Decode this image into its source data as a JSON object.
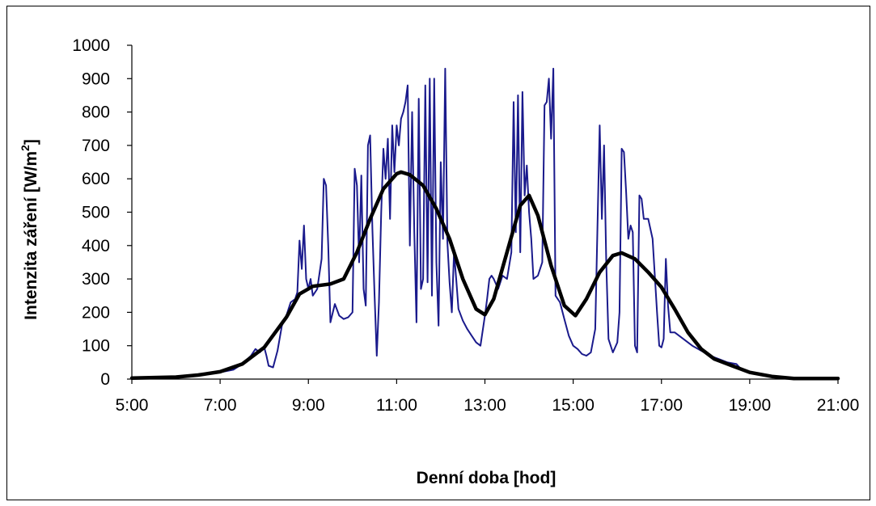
{
  "chart_data": {
    "type": "line",
    "title": "",
    "xlabel": "Denní doba [hod]",
    "ylabel_main": "Intenzita záření [W/m",
    "ylabel_sup": "2",
    "ylabel_close": "]",
    "xlim": [
      5,
      21
    ],
    "ylim": [
      0,
      1000
    ],
    "x_ticks": [
      5,
      7,
      9,
      11,
      13,
      15,
      17,
      19,
      21
    ],
    "x_tick_labels": [
      "5:00",
      "7:00",
      "9:00",
      "11:00",
      "13:00",
      "15:00",
      "17:00",
      "19:00",
      "21:00"
    ],
    "y_ticks": [
      0,
      100,
      200,
      300,
      400,
      500,
      600,
      700,
      800,
      900,
      1000
    ],
    "y_tick_labels": [
      "0",
      "100",
      "200",
      "300",
      "400",
      "500",
      "600",
      "700",
      "800",
      "900",
      "1000"
    ],
    "grid": false,
    "legend": "none",
    "series": [
      {
        "color": "#1a1a8c",
        "points": [
          [
            5.0,
            5
          ],
          [
            6.0,
            5
          ],
          [
            6.5,
            12
          ],
          [
            7.0,
            20
          ],
          [
            7.3,
            28
          ],
          [
            7.5,
            45
          ],
          [
            7.7,
            70
          ],
          [
            7.8,
            90
          ],
          [
            7.9,
            80
          ],
          [
            8.0,
            95
          ],
          [
            8.05,
            70
          ],
          [
            8.1,
            40
          ],
          [
            8.2,
            35
          ],
          [
            8.3,
            85
          ],
          [
            8.4,
            160
          ],
          [
            8.5,
            190
          ],
          [
            8.6,
            230
          ],
          [
            8.7,
            240
          ],
          [
            8.75,
            260
          ],
          [
            8.8,
            415
          ],
          [
            8.85,
            330
          ],
          [
            8.9,
            460
          ],
          [
            8.95,
            300
          ],
          [
            9.0,
            270
          ],
          [
            9.05,
            300
          ],
          [
            9.1,
            250
          ],
          [
            9.2,
            270
          ],
          [
            9.3,
            360
          ],
          [
            9.35,
            600
          ],
          [
            9.4,
            580
          ],
          [
            9.45,
            400
          ],
          [
            9.5,
            170
          ],
          [
            9.6,
            225
          ],
          [
            9.7,
            190
          ],
          [
            9.8,
            180
          ],
          [
            9.9,
            185
          ],
          [
            10.0,
            200
          ],
          [
            10.05,
            630
          ],
          [
            10.1,
            580
          ],
          [
            10.15,
            350
          ],
          [
            10.2,
            610
          ],
          [
            10.25,
            270
          ],
          [
            10.3,
            220
          ],
          [
            10.35,
            700
          ],
          [
            10.4,
            730
          ],
          [
            10.45,
            450
          ],
          [
            10.5,
            250
          ],
          [
            10.55,
            70
          ],
          [
            10.6,
            230
          ],
          [
            10.65,
            500
          ],
          [
            10.7,
            690
          ],
          [
            10.75,
            600
          ],
          [
            10.8,
            720
          ],
          [
            10.85,
            480
          ],
          [
            10.9,
            760
          ],
          [
            10.95,
            620
          ],
          [
            11.0,
            760
          ],
          [
            11.05,
            700
          ],
          [
            11.1,
            780
          ],
          [
            11.15,
            800
          ],
          [
            11.2,
            830
          ],
          [
            11.25,
            880
          ],
          [
            11.3,
            400
          ],
          [
            11.35,
            800
          ],
          [
            11.4,
            440
          ],
          [
            11.45,
            170
          ],
          [
            11.5,
            840
          ],
          [
            11.55,
            270
          ],
          [
            11.6,
            300
          ],
          [
            11.65,
            880
          ],
          [
            11.7,
            290
          ],
          [
            11.75,
            900
          ],
          [
            11.8,
            250
          ],
          [
            11.85,
            900
          ],
          [
            11.9,
            350
          ],
          [
            11.95,
            160
          ],
          [
            12.0,
            650
          ],
          [
            12.05,
            420
          ],
          [
            12.1,
            930
          ],
          [
            12.15,
            410
          ],
          [
            12.2,
            290
          ],
          [
            12.25,
            200
          ],
          [
            12.3,
            380
          ],
          [
            12.35,
            300
          ],
          [
            12.4,
            210
          ],
          [
            12.5,
            175
          ],
          [
            12.6,
            150
          ],
          [
            12.7,
            130
          ],
          [
            12.8,
            110
          ],
          [
            12.9,
            100
          ],
          [
            13.0,
            190
          ],
          [
            13.05,
            240
          ],
          [
            13.1,
            300
          ],
          [
            13.15,
            310
          ],
          [
            13.2,
            300
          ],
          [
            13.3,
            270
          ],
          [
            13.4,
            310
          ],
          [
            13.5,
            300
          ],
          [
            13.6,
            380
          ],
          [
            13.65,
            830
          ],
          [
            13.7,
            440
          ],
          [
            13.75,
            850
          ],
          [
            13.8,
            380
          ],
          [
            13.85,
            860
          ],
          [
            13.9,
            550
          ],
          [
            13.95,
            640
          ],
          [
            14.0,
            500
          ],
          [
            14.05,
            420
          ],
          [
            14.1,
            300
          ],
          [
            14.2,
            310
          ],
          [
            14.3,
            350
          ],
          [
            14.35,
            820
          ],
          [
            14.4,
            830
          ],
          [
            14.45,
            900
          ],
          [
            14.5,
            720
          ],
          [
            14.55,
            930
          ],
          [
            14.6,
            250
          ],
          [
            14.7,
            230
          ],
          [
            14.8,
            180
          ],
          [
            14.9,
            130
          ],
          [
            15.0,
            100
          ],
          [
            15.1,
            90
          ],
          [
            15.2,
            75
          ],
          [
            15.3,
            70
          ],
          [
            15.4,
            80
          ],
          [
            15.5,
            150
          ],
          [
            15.55,
            450
          ],
          [
            15.6,
            760
          ],
          [
            15.65,
            480
          ],
          [
            15.7,
            700
          ],
          [
            15.75,
            350
          ],
          [
            15.8,
            120
          ],
          [
            15.9,
            80
          ],
          [
            16.0,
            110
          ],
          [
            16.05,
            200
          ],
          [
            16.1,
            690
          ],
          [
            16.15,
            680
          ],
          [
            16.2,
            560
          ],
          [
            16.25,
            420
          ],
          [
            16.3,
            460
          ],
          [
            16.35,
            440
          ],
          [
            16.4,
            100
          ],
          [
            16.45,
            80
          ],
          [
            16.5,
            550
          ],
          [
            16.55,
            540
          ],
          [
            16.6,
            480
          ],
          [
            16.7,
            480
          ],
          [
            16.8,
            420
          ],
          [
            16.9,
            200
          ],
          [
            16.95,
            100
          ],
          [
            17.0,
            95
          ],
          [
            17.05,
            120
          ],
          [
            17.1,
            360
          ],
          [
            17.15,
            220
          ],
          [
            17.2,
            140
          ],
          [
            17.3,
            140
          ],
          [
            17.5,
            120
          ],
          [
            17.7,
            100
          ],
          [
            17.9,
            85
          ],
          [
            18.1,
            70
          ],
          [
            18.3,
            60
          ],
          [
            18.5,
            50
          ],
          [
            18.7,
            45
          ],
          [
            18.8,
            30
          ],
          [
            19.0,
            22
          ],
          [
            19.3,
            12
          ],
          [
            19.6,
            5
          ],
          [
            20.0,
            2
          ],
          [
            21.0,
            2
          ]
        ]
      },
      {
        "color": "#000000",
        "points": [
          [
            5.0,
            3
          ],
          [
            6.0,
            6
          ],
          [
            6.5,
            12
          ],
          [
            7.0,
            22
          ],
          [
            7.5,
            45
          ],
          [
            8.0,
            95
          ],
          [
            8.5,
            185
          ],
          [
            8.8,
            255
          ],
          [
            9.1,
            278
          ],
          [
            9.5,
            285
          ],
          [
            9.8,
            300
          ],
          [
            10.1,
            380
          ],
          [
            10.4,
            480
          ],
          [
            10.7,
            570
          ],
          [
            11.0,
            615
          ],
          [
            11.1,
            620
          ],
          [
            11.3,
            612
          ],
          [
            11.6,
            580
          ],
          [
            11.9,
            510
          ],
          [
            12.2,
            420
          ],
          [
            12.5,
            300
          ],
          [
            12.8,
            210
          ],
          [
            13.0,
            193
          ],
          [
            13.2,
            240
          ],
          [
            13.5,
            380
          ],
          [
            13.8,
            520
          ],
          [
            14.0,
            550
          ],
          [
            14.2,
            490
          ],
          [
            14.5,
            340
          ],
          [
            14.8,
            220
          ],
          [
            15.05,
            190
          ],
          [
            15.3,
            240
          ],
          [
            15.6,
            320
          ],
          [
            15.9,
            370
          ],
          [
            16.1,
            378
          ],
          [
            16.4,
            360
          ],
          [
            16.7,
            320
          ],
          [
            17.0,
            275
          ],
          [
            17.3,
            210
          ],
          [
            17.6,
            140
          ],
          [
            17.9,
            90
          ],
          [
            18.2,
            60
          ],
          [
            18.6,
            40
          ],
          [
            19.0,
            20
          ],
          [
            19.5,
            8
          ],
          [
            20.0,
            2
          ],
          [
            21.0,
            2
          ]
        ]
      }
    ]
  }
}
